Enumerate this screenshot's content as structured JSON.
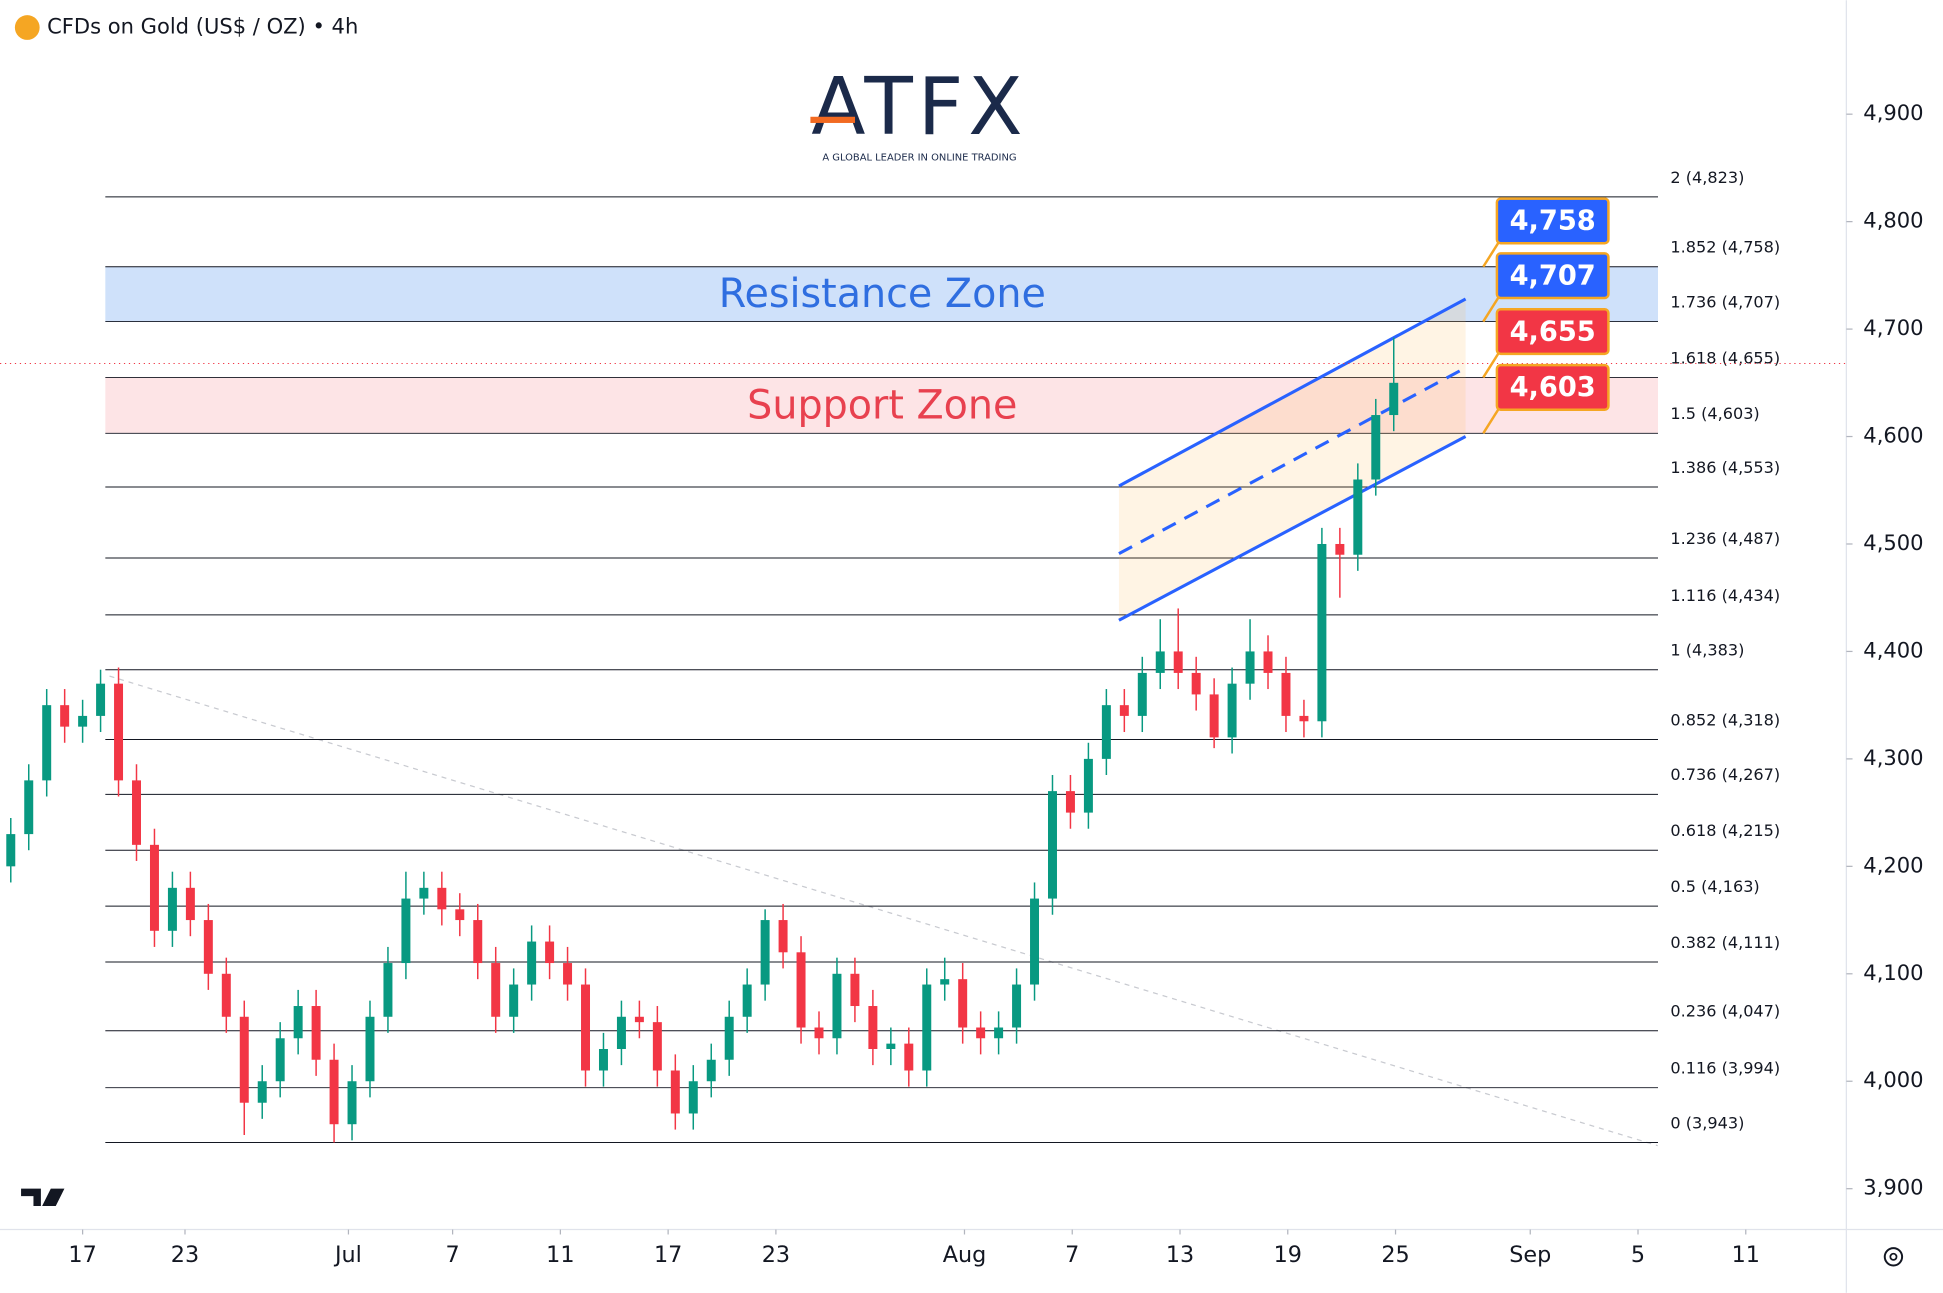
{
  "chart_data": {
    "type": "candlestick",
    "title": "CFDs on Gold (US$ / OZ) • 4h",
    "logo": {
      "name": "ATFX",
      "tagline": "A GLOBAL LEADER IN ONLINE TRADING"
    },
    "xlim": [
      -4.6,
      98.2
    ],
    "xticks": [
      {
        "value": 0,
        "label": "17"
      },
      {
        "value": 5.7,
        "label": "23"
      },
      {
        "value": 14.8,
        "label": "Jul"
      },
      {
        "value": 20.6,
        "label": "7"
      },
      {
        "value": 26.6,
        "label": "11"
      },
      {
        "value": 32.6,
        "label": "17"
      },
      {
        "value": 38.6,
        "label": "23"
      },
      {
        "value": 49.1,
        "label": "Aug"
      },
      {
        "value": 55.1,
        "label": "7"
      },
      {
        "value": 61.1,
        "label": "13"
      },
      {
        "value": 67.1,
        "label": "19"
      },
      {
        "value": 73.1,
        "label": "25"
      },
      {
        "value": 80.6,
        "label": "Sep"
      },
      {
        "value": 86.6,
        "label": "5"
      },
      {
        "value": 92.6,
        "label": "11"
      }
    ],
    "ylim": [
      3862,
      5006
    ],
    "yticks": [
      {
        "value": 3900,
        "label": "3,900"
      },
      {
        "value": 4000,
        "label": "4,000"
      },
      {
        "value": 4100,
        "label": "4,100"
      },
      {
        "value": 4200,
        "label": "4,200"
      },
      {
        "value": 4300,
        "label": "4,300"
      },
      {
        "value": 4400,
        "label": "4,400"
      },
      {
        "value": 4500,
        "label": "4,500"
      },
      {
        "value": 4600,
        "label": "4,600"
      },
      {
        "value": 4700,
        "label": "4,700"
      },
      {
        "value": 4800,
        "label": "4,800"
      },
      {
        "value": 4900,
        "label": "4,900"
      }
    ],
    "up_color": "#089981",
    "down_color": "#f23645",
    "x": [
      -4,
      -3,
      -2,
      -1,
      0,
      1,
      2,
      3,
      4,
      5,
      6,
      7,
      8,
      9,
      10,
      11,
      12,
      13,
      14,
      15,
      16,
      17,
      18,
      19,
      20,
      21,
      22,
      23,
      24,
      25,
      26,
      27,
      28,
      29,
      30,
      31,
      32,
      33,
      34,
      35,
      36,
      37,
      38,
      39,
      40,
      41,
      42,
      43,
      44,
      45,
      46,
      47,
      48,
      49,
      50,
      51,
      52,
      53,
      54,
      55,
      56,
      57,
      58,
      59,
      60,
      61,
      62,
      63,
      64,
      65,
      66,
      67,
      68,
      69,
      70,
      71,
      72,
      73
    ],
    "open": [
      4200,
      4230,
      4280,
      4350,
      4330,
      4340,
      4370,
      4280,
      4220,
      4140,
      4180,
      4150,
      4100,
      4060,
      3980,
      4000,
      4040,
      4070,
      4020,
      3960,
      4000,
      4060,
      4110,
      4170,
      4180,
      4160,
      4150,
      4110,
      4060,
      4090,
      4130,
      4110,
      4090,
      4010,
      4030,
      4060,
      4055,
      4010,
      3970,
      4000,
      4020,
      4060,
      4090,
      4150,
      4120,
      4050,
      4040,
      4100,
      4070,
      4030,
      4035,
      4010,
      4090,
      4095,
      4050,
      4040,
      4050,
      4090,
      4170,
      4270,
      4250,
      4300,
      4350,
      4340,
      4380,
      4400,
      4380,
      4360,
      4320,
      4370,
      4400,
      4380,
      4340,
      4335,
      4500,
      4490,
      4560,
      4620
    ],
    "high": [
      4245,
      4295,
      4365,
      4365,
      4355,
      4383,
      4385,
      4295,
      4235,
      4195,
      4195,
      4165,
      4115,
      4075,
      4015,
      4055,
      4085,
      4085,
      4035,
      4015,
      4075,
      4125,
      4195,
      4195,
      4195,
      4175,
      4165,
      4125,
      4105,
      4145,
      4145,
      4125,
      4105,
      4045,
      4075,
      4075,
      4070,
      4025,
      4015,
      4035,
      4075,
      4105,
      4160,
      4165,
      4135,
      4065,
      4115,
      4115,
      4085,
      4050,
      4050,
      4105,
      4115,
      4110,
      4065,
      4065,
      4105,
      4185,
      4285,
      4285,
      4315,
      4365,
      4365,
      4395,
      4430,
      4440,
      4395,
      4375,
      4385,
      4430,
      4415,
      4395,
      4355,
      4515,
      4515,
      4575,
      4635,
      4692
    ],
    "low": [
      4185,
      4215,
      4265,
      4315,
      4315,
      4325,
      4265,
      4205,
      4125,
      4125,
      4135,
      4085,
      4045,
      3950,
      3965,
      3985,
      4025,
      4005,
      3943,
      3945,
      3985,
      4045,
      4095,
      4155,
      4145,
      4135,
      4095,
      4045,
      4045,
      4075,
      4095,
      4075,
      3995,
      3995,
      4015,
      4040,
      3995,
      3955,
      3955,
      3985,
      4005,
      4045,
      4075,
      4105,
      4035,
      4025,
      4025,
      4055,
      4015,
      4015,
      3995,
      3995,
      4075,
      4035,
      4025,
      4025,
      4035,
      4075,
      4155,
      4235,
      4235,
      4285,
      4325,
      4325,
      4365,
      4365,
      4345,
      4310,
      4305,
      4355,
      4365,
      4325,
      4320,
      4320,
      4450,
      4475,
      4545,
      4605
    ],
    "close": [
      4230,
      4280,
      4350,
      4330,
      4340,
      4370,
      4280,
      4220,
      4140,
      4180,
      4150,
      4100,
      4060,
      3980,
      4000,
      4040,
      4070,
      4020,
      3960,
      4000,
      4060,
      4110,
      4170,
      4180,
      4160,
      4150,
      4110,
      4060,
      4090,
      4130,
      4110,
      4090,
      4010,
      4030,
      4060,
      4055,
      4010,
      3970,
      4000,
      4020,
      4060,
      4090,
      4150,
      4120,
      4050,
      4040,
      4100,
      4070,
      4030,
      4035,
      4010,
      4090,
      4095,
      4050,
      4040,
      4050,
      4090,
      4170,
      4270,
      4250,
      4300,
      4350,
      4340,
      4380,
      4400,
      4380,
      4360,
      4320,
      4370,
      4400,
      4380,
      4340,
      4335,
      4500,
      4490,
      4560,
      4620,
      4650
    ],
    "last_price": 4668,
    "fib_levels": [
      {
        "value": 4823,
        "label": "2 (4,823)"
      },
      {
        "value": 4758,
        "label": "1.852 (4,758)"
      },
      {
        "value": 4707,
        "label": "1.736 (4,707)"
      },
      {
        "value": 4655,
        "label": "1.618 (4,655)"
      },
      {
        "value": 4603,
        "label": "1.5 (4,603)"
      },
      {
        "value": 4553,
        "label": "1.386 (4,553)"
      },
      {
        "value": 4487,
        "label": "1.236 (4,487)"
      },
      {
        "value": 4434,
        "label": "1.116 (4,434)"
      },
      {
        "value": 4383,
        "label": "1 (4,383)"
      },
      {
        "value": 4318,
        "label": "0.852 (4,318)"
      },
      {
        "value": 4267,
        "label": "0.736 (4,267)"
      },
      {
        "value": 4215,
        "label": "0.618 (4,215)"
      },
      {
        "value": 4163,
        "label": "0.5 (4,163)"
      },
      {
        "value": 4111,
        "label": "0.382 (4,111)"
      },
      {
        "value": 4047,
        "label": "0.236 (4,047)"
      },
      {
        "value": 3994,
        "label": "0.116 (3,994)"
      },
      {
        "value": 3943,
        "label": "0 (3,943)"
      }
    ],
    "zones": [
      {
        "label": "Resistance Zone",
        "range": [
          4707,
          4758
        ],
        "color": "#cfe1fa",
        "text_color": "#2f6ee0"
      },
      {
        "label": "Support Zone",
        "range": [
          4603,
          4655
        ],
        "color": "#fde4e6",
        "text_color": "#e8414f"
      }
    ],
    "badges": [
      {
        "value": 4758,
        "label": "4,758",
        "color": "#2962ff"
      },
      {
        "value": 4707,
        "label": "4,707",
        "color": "#2962ff"
      },
      {
        "value": 4655,
        "label": "4,655",
        "color": "#f23645"
      },
      {
        "value": 4603,
        "label": "4,603",
        "color": "#f23645"
      }
    ],
    "channel": {
      "upper": [
        [
          57.7,
          4554
        ],
        [
          77,
          4728
        ]
      ],
      "middle": [
        [
          57.7,
          4491
        ],
        [
          77,
          4664
        ]
      ],
      "lower": [
        [
          57.7,
          4429
        ],
        [
          77,
          4600
        ]
      ],
      "color": "#2962ff"
    },
    "trendline": [
      [
        1.5,
        4377
      ],
      [
        87.7,
        3940
      ]
    ]
  }
}
